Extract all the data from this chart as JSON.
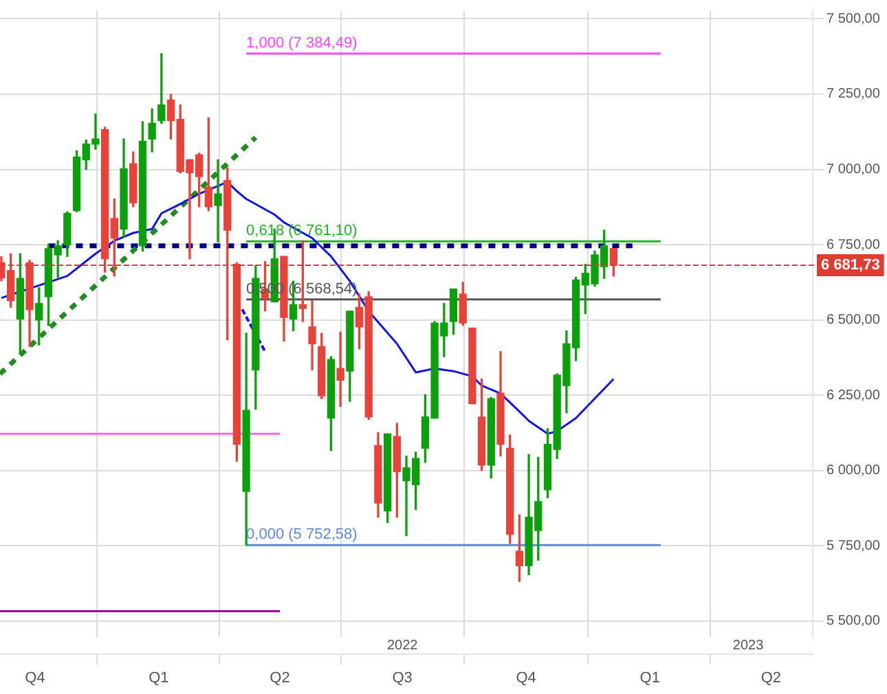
{
  "chart_data": {
    "type": "candlestick",
    "x": [
      "2021-09-06",
      "2021-09-13",
      "2021-09-20",
      "2021-09-27",
      "2021-10-04",
      "2021-10-11",
      "2021-10-18",
      "2021-10-25",
      "2021-11-01",
      "2021-11-08",
      "2021-11-15",
      "2021-11-22",
      "2021-11-29",
      "2021-12-06",
      "2021-12-13",
      "2021-12-20",
      "2021-12-27",
      "2022-01-03",
      "2022-01-10",
      "2022-01-17",
      "2022-01-24",
      "2022-01-31",
      "2022-02-07",
      "2022-02-14",
      "2022-02-21",
      "2022-02-28",
      "2022-03-07",
      "2022-03-14",
      "2022-03-21",
      "2022-03-28",
      "2022-04-04",
      "2022-04-11",
      "2022-04-18",
      "2022-04-25",
      "2022-05-02",
      "2022-05-09",
      "2022-05-16",
      "2022-05-23",
      "2022-05-30",
      "2022-06-06",
      "2022-06-13",
      "2022-06-20",
      "2022-06-27",
      "2022-07-04",
      "2022-07-11",
      "2022-07-18",
      "2022-07-25",
      "2022-08-01",
      "2022-08-08",
      "2022-08-15",
      "2022-08-22",
      "2022-08-29",
      "2022-09-05",
      "2022-09-12",
      "2022-09-19",
      "2022-09-26",
      "2022-10-03",
      "2022-10-10",
      "2022-10-17",
      "2022-10-24",
      "2022-10-31",
      "2022-11-07",
      "2022-11-14",
      "2022-11-21",
      "2022-11-28",
      "2022-12-05"
    ],
    "ohlc": [
      [
        6690,
        6710,
        6630,
        6640
      ],
      [
        6664,
        6720,
        6542,
        6564
      ],
      [
        6503,
        6720,
        6386,
        6638
      ],
      [
        6690,
        6698,
        6412,
        6534
      ],
      [
        6500,
        6607,
        6417,
        6555
      ],
      [
        6577,
        6750,
        6482,
        6737
      ],
      [
        6716,
        6763,
        6642,
        6746
      ],
      [
        6750,
        6859,
        6711,
        6854
      ],
      [
        6863,
        7062,
        6859,
        7041
      ],
      [
        7032,
        7097,
        7000,
        7084
      ],
      [
        7084,
        7184,
        7067,
        7101
      ],
      [
        7132,
        7140,
        6659,
        6703
      ],
      [
        6837,
        6902,
        6646,
        6772
      ],
      [
        6802,
        7101,
        6776,
        7002
      ],
      [
        7019,
        7058,
        6876,
        6889
      ],
      [
        6746,
        7158,
        6729,
        7093
      ],
      [
        7101,
        7201,
        7058,
        7153
      ],
      [
        7162,
        7384,
        7153,
        7214
      ],
      [
        7231,
        7249,
        7101,
        7162
      ],
      [
        7166,
        7214,
        6989,
        6993
      ],
      [
        7032,
        7032,
        6703,
        6989
      ],
      [
        7049,
        7054,
        6876,
        6976
      ],
      [
        6941,
        7171,
        6863,
        6876
      ],
      [
        6880,
        7032,
        6759,
        6919
      ],
      [
        6963,
        7006,
        6434,
        6798
      ],
      [
        6685,
        6690,
        6031,
        6087
      ],
      [
        5931,
        6456,
        5753,
        6200
      ],
      [
        6334,
        6681,
        6204,
        6638
      ],
      [
        6603,
        6694,
        6530,
        6573
      ],
      [
        6560,
        6802,
        6560,
        6703
      ],
      [
        6711,
        6711,
        6430,
        6508
      ],
      [
        6503,
        6629,
        6464,
        6551
      ],
      [
        6551,
        6763,
        6495,
        6538
      ],
      [
        6477,
        6564,
        6334,
        6421
      ],
      [
        6412,
        6456,
        6239,
        6248
      ],
      [
        6174,
        6378,
        6066,
        6369
      ],
      [
        6339,
        6460,
        6213,
        6300
      ],
      [
        6330,
        6529,
        6230,
        6529
      ],
      [
        6542,
        6586,
        6404,
        6477
      ],
      [
        6577,
        6594,
        6170,
        6178
      ],
      [
        6083,
        6126,
        5845,
        5892
      ],
      [
        5866,
        6122,
        5827,
        6122
      ],
      [
        6113,
        6157,
        5845,
        5996
      ],
      [
        5966,
        6048,
        5784,
        6009
      ],
      [
        5953,
        6061,
        5871,
        6040
      ],
      [
        6074,
        6252,
        6027,
        6178
      ],
      [
        6174,
        6495,
        6174,
        6490
      ],
      [
        6447,
        6555,
        6378,
        6490
      ],
      [
        6495,
        6603,
        6452,
        6603
      ],
      [
        6586,
        6625,
        6482,
        6490
      ],
      [
        6473,
        6473,
        6222,
        6222
      ],
      [
        6178,
        6304,
        6001,
        6018
      ],
      [
        6018,
        6243,
        5975,
        6239
      ],
      [
        6257,
        6395,
        6048,
        6087
      ],
      [
        6074,
        6118,
        5758,
        5788
      ],
      [
        5732,
        5853,
        5632,
        5684
      ],
      [
        5684,
        6053,
        5654,
        5845
      ],
      [
        5801,
        6044,
        5702,
        5897
      ],
      [
        5936,
        6139,
        5910,
        6087
      ],
      [
        6070,
        6321,
        6040,
        6317
      ],
      [
        6282,
        6464,
        6192,
        6421
      ],
      [
        6408,
        6642,
        6365,
        6633
      ],
      [
        6616,
        6685,
        6521,
        6655
      ],
      [
        6620,
        6729,
        6612,
        6716
      ],
      [
        6677,
        6798,
        6638,
        6746
      ],
      [
        6737,
        6737,
        6646,
        6681.73
      ]
    ],
    "colors": [
      "#e8433a",
      "#e8433a",
      "#0ca00c",
      "#e8433a",
      "#0ca00c",
      "#0ca00c",
      "#0ca00c",
      "#0ca00c",
      "#0ca00c",
      "#0ca00c",
      "#0ca00c",
      "#e8433a",
      "#e8433a",
      "#0ca00c",
      "#e8433a",
      "#0ca00c",
      "#0ca00c",
      "#0ca00c",
      "#e8433a",
      "#e8433a",
      "#e8433a",
      "#e8433a",
      "#e8433a",
      "#0ca00c",
      "#e8433a",
      "#e8433a",
      "#0ca00c",
      "#0ca00c",
      "#e8433a",
      "#0ca00c",
      "#e8433a",
      "#0ca00c",
      "#e8433a",
      "#e8433a",
      "#e8433a",
      "#0ca00c",
      "#e8433a",
      "#0ca00c",
      "#e8433a",
      "#e8433a",
      "#e8433a",
      "#0ca00c",
      "#e8433a",
      "#0ca00c",
      "#0ca00c",
      "#0ca00c",
      "#0ca00c",
      "#0ca00c",
      "#0ca00c",
      "#e8433a",
      "#e8433a",
      "#e8433a",
      "#0ca00c",
      "#e8433a",
      "#e8433a",
      "#e8433a",
      "#0ca00c",
      "#0ca00c",
      "#0ca00c",
      "#0ca00c",
      "#0ca00c",
      "#0ca00c",
      "#0ca00c",
      "#0ca00c",
      "#0ca00c",
      "#e8433a"
    ],
    "series": [
      {
        "type": "line",
        "color": "#1414e6",
        "line_style": "solid",
        "x": [
          "2021-09-06",
          "2021-10-25",
          "2021-11-15",
          "2021-11-29",
          "2021-12-13",
          "2021-12-27",
          "2022-01-03",
          "2022-01-17",
          "2022-01-31",
          "2022-02-14",
          "2022-02-21",
          "2022-02-28",
          "2022-03-07",
          "2022-03-28",
          "2022-04-04",
          "2022-04-25",
          "2022-05-09",
          "2022-05-23",
          "2022-06-06",
          "2022-06-27",
          "2022-07-11",
          "2022-07-25",
          "2022-08-08",
          "2022-08-22",
          "2022-08-29",
          "2022-09-12",
          "2022-09-26",
          "2022-10-03",
          "2022-10-17",
          "2022-10-24",
          "2022-11-07",
          "2022-11-21",
          "2022-12-05"
        ],
        "values": [
          6573,
          6646,
          6720,
          6763,
          6789,
          6802,
          6854,
          6885,
          6919,
          6945,
          6958,
          6928,
          6902,
          6850,
          6824,
          6772,
          6711,
          6629,
          6529,
          6421,
          6326,
          6339,
          6330,
          6313,
          6282,
          6256,
          6196,
          6165,
          6122,
          6131,
          6174,
          6239,
          6304
        ]
      },
      {
        "type": "line",
        "color": "#228b22",
        "line_style": "dotted",
        "x": [
          "2021-09-05",
          "2022-03-14"
        ],
        "values": [
          6321,
          7106
        ]
      },
      {
        "type": "line",
        "color": "#1414e6",
        "line_style": "dashed",
        "x": [
          "2022-03-04",
          "2022-03-21"
        ],
        "values": [
          6535,
          6395
        ]
      },
      {
        "type": "line",
        "color": "#000080",
        "line_style": "dotted",
        "x": [
          "2021-10-11",
          "2022-12-19"
        ],
        "values": [
          6746,
          6746
        ]
      },
      {
        "type": "line",
        "name": "1,000 (7 384,49)",
        "color": "#ff44ff",
        "line_style": "solid",
        "x": [
          "2022-03-07",
          "2023-01-09"
        ],
        "values": [
          7384.49,
          7384.49
        ]
      },
      {
        "type": "line",
        "name": "0,618 (6 761,10)",
        "color": "#22b422",
        "line_style": "solid",
        "x": [
          "2022-03-07",
          "2023-01-09"
        ],
        "values": [
          6761.1,
          6761.1
        ]
      },
      {
        "type": "line",
        "name": "0,500 (6 568,54)",
        "color": "#555555",
        "line_style": "solid",
        "x": [
          "2022-03-07",
          "2023-01-09"
        ],
        "values": [
          6568.54,
          6568.54
        ]
      },
      {
        "type": "line",
        "name": "0,000 (5 752,58)",
        "color": "#5a8ae6",
        "line_style": "solid",
        "x": [
          "2022-03-07",
          "2023-01-09"
        ],
        "values": [
          5752.58,
          5752.58
        ]
      },
      {
        "type": "line",
        "color": "#ff66dd",
        "line_style": "solid",
        "x": [
          "2021-09-05",
          "2022-04-01"
        ],
        "values": [
          6122,
          6122
        ]
      },
      {
        "type": "line",
        "color": "#990099",
        "line_style": "solid",
        "x": [
          "2021-09-05",
          "2022-04-01"
        ],
        "values": [
          5533,
          5533
        ]
      }
    ],
    "ref_lines": [
      {
        "axis": "y",
        "value": 6681.73,
        "label": "6 681,73",
        "color": "#e03c31",
        "line_style": "dashed"
      }
    ],
    "xlim": [
      "2021-09-05",
      "2023-05-02"
    ],
    "xticks": [
      {
        "value": "2021-10-01",
        "label": "Q4"
      },
      {
        "value": "2022-01-01",
        "label": "Q1"
      },
      {
        "value": "2022-04-01",
        "label": "Q2"
      },
      {
        "value": "2022-07-01",
        "label": "Q3"
      },
      {
        "value": "2022-10-01",
        "label": "Q4"
      },
      {
        "value": "2023-01-01",
        "label": "Q1"
      },
      {
        "value": "2023-04-01",
        "label": "Q2"
      }
    ],
    "ylim": [
      5446,
      7526
    ],
    "yticks": [
      {
        "value": 5500,
        "label": "5 500,00"
      },
      {
        "value": 5750,
        "label": "5 750,00"
      },
      {
        "value": 6000,
        "label": "6 000,00"
      },
      {
        "value": 6250,
        "label": "6 250,00"
      },
      {
        "value": 6500,
        "label": "6 500,00"
      },
      {
        "value": 6750,
        "label": "6 750,00"
      },
      {
        "value": 7000,
        "label": "7 000,00"
      },
      {
        "value": 7250,
        "label": "7 250,00"
      },
      {
        "value": 7500,
        "label": "7 500,00"
      }
    ],
    "x2lim": [
      "2021-09-05",
      "2023-05-02"
    ],
    "x2ticks": [
      {
        "value": "2022-07-01",
        "label": "2022"
      },
      {
        "value": "2023-03-15",
        "label": "2023"
      }
    ],
    "grid": true,
    "legend": false
  }
}
